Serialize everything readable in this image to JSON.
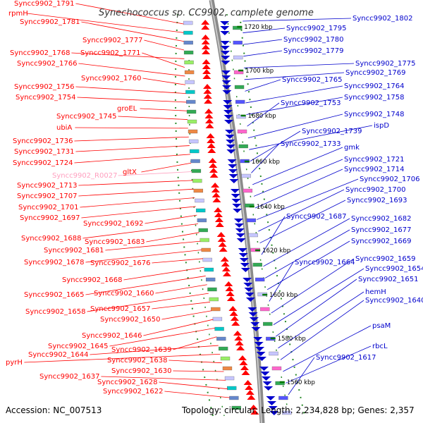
{
  "title": "Synechococcus sp. CC9902, complete genome",
  "accession_text": "Accession: NC_007513",
  "topology_text": "Topology: circular; Length: 2,234,828 bp; Genes: 2,357",
  "colors": {
    "forward": "#ff0000",
    "reverse": "#0000cc",
    "rna": "#ff9fbf",
    "backbone": "#888888",
    "tick": "#007700"
  },
  "kbp_marks": [
    "1720 kbp",
    "1700 kbp",
    "1680 kbp",
    "1660 kbp",
    "1640 kbp",
    "1620 kbp",
    "1600 kbp",
    "1580 kbp",
    "1560 kbp"
  ],
  "left_labels": [
    "Syncc9902_1791",
    "rpmH",
    "Syncc9902_1781",
    "Syncc9902_1777",
    "Syncc9902_1768",
    "Syncc9902_1771",
    "Syncc9902_1766",
    "Syncc9902_1760",
    "Syncc9902_1756",
    "Syncc9902_1754",
    "groEL",
    "Syncc9902_1745",
    "ubiA",
    "Syncc9902_1736",
    "Syncc9902_1731",
    "Syncc9902_1724",
    "gltX",
    "Syncc9902_R0027",
    "Syncc9902_1713",
    "Syncc9902_1707",
    "Syncc9902_1701",
    "Syncc9902_1697",
    "Syncc9902_1692",
    "Syncc9902_1688",
    "Syncc9902_1683",
    "Syncc9902_1681",
    "Syncc9902_1678",
    "Syncc9902_1676",
    "Syncc9902_1668",
    "Syncc9902_1665",
    "Syncc9902_1660",
    "Syncc9902_1658",
    "Syncc9902_1657",
    "Syncc9902_1650",
    "Syncc9902_1646",
    "Syncc9902_1645",
    "Syncc9902_1639",
    "Syncc9902_1644",
    "pyrH",
    "Syncc9902_1638",
    "Syncc9902_1630",
    "Syncc9902_1637",
    "Syncc9902_1628",
    "Syncc9902_1622"
  ],
  "right_labels": [
    "Syncc9902_1802",
    "Syncc9902_1795",
    "Syncc9902_1780",
    "Syncc9902_1779",
    "Syncc9902_1775",
    "Syncc9902_1769",
    "Syncc9902_1765",
    "Syncc9902_1764",
    "Syncc9902_1758",
    "Syncc9902_1753",
    "Syncc9902_1748",
    "ispD",
    "Syncc9902_1739",
    "Syncc9902_1733",
    "gmk",
    "Syncc9902_1721",
    "Syncc9902_1714",
    "Syncc9902_1706",
    "Syncc9902_1700",
    "Syncc9902_1693",
    "Syncc9902_1687",
    "Syncc9902_1682",
    "Syncc9902_1677",
    "Syncc9902_1669",
    "Syncc9902_1664",
    "Syncc9902_1659",
    "Syncc9902_1654",
    "Syncc9902_1651",
    "hemH",
    "Syncc9902_1640",
    "psaM",
    "rbcL",
    "Syncc9902_1617"
  ]
}
